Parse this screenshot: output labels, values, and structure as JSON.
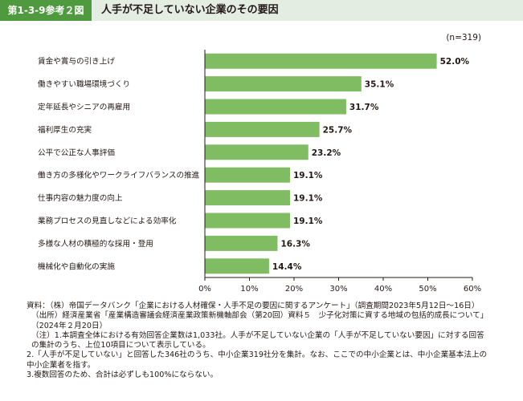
{
  "header": {
    "figure_number": "第1-3-9参考２図",
    "title": "人手が不足していない企業のその要因"
  },
  "chart_data": {
    "type": "bar",
    "orientation": "horizontal",
    "sample_note": "(n=319)",
    "categories": [
      "賃金や賞与の引き上げ",
      "働きやすい職場環境づくり",
      "定年延長やシニアの再雇用",
      "福利厚生の充実",
      "公平で公正な人事評価",
      "働き方の多様化やワークライフバランスの推進",
      "仕事内容の魅力度の向上",
      "業務プロセスの見直しなどによる効率化",
      "多様な人材の積極的な採用・登用",
      "機械化や自動化の実施"
    ],
    "values": [
      52.0,
      35.1,
      31.7,
      25.7,
      23.2,
      19.1,
      19.1,
      19.1,
      16.3,
      14.4
    ],
    "value_labels": [
      "52.0%",
      "35.1%",
      "31.7%",
      "25.7%",
      "23.2%",
      "19.1%",
      "19.1%",
      "19.1%",
      "16.3%",
      "14.4%"
    ],
    "x_ticks": [
      "0%",
      "10%",
      "20%",
      "30%",
      "40%",
      "50%",
      "60%"
    ],
    "xlim": [
      0,
      60
    ],
    "bar_color": "#7fbc62",
    "grid": false
  },
  "notes": [
    "資料：（株）帝国データバンク「企業における人材確保・人手不足の要因に関するアンケート」（調査期間2023年5月12日～16日）",
    "（出所）経済産業省「産業構造審議会経済産業政策新機軸部会（第20回）資料５　少子化対策に資する地域の包括的成長について」（2024年２月20日）",
    "（注）1.本調査全体における有効回答企業数は1,033社。人手が不足していない企業の「人手が不足していない要因」に対する回答の集計のうち、上位10項目について表示している。",
    "2.「人手が不足していない」と回答した346社のうち、中小企業319社分を集計。なお、ここでの中小企業とは、中小企業基本法上の中小企業者を指す。",
    "3.複数回答のため、合計は必ずしも100%にならない。"
  ]
}
